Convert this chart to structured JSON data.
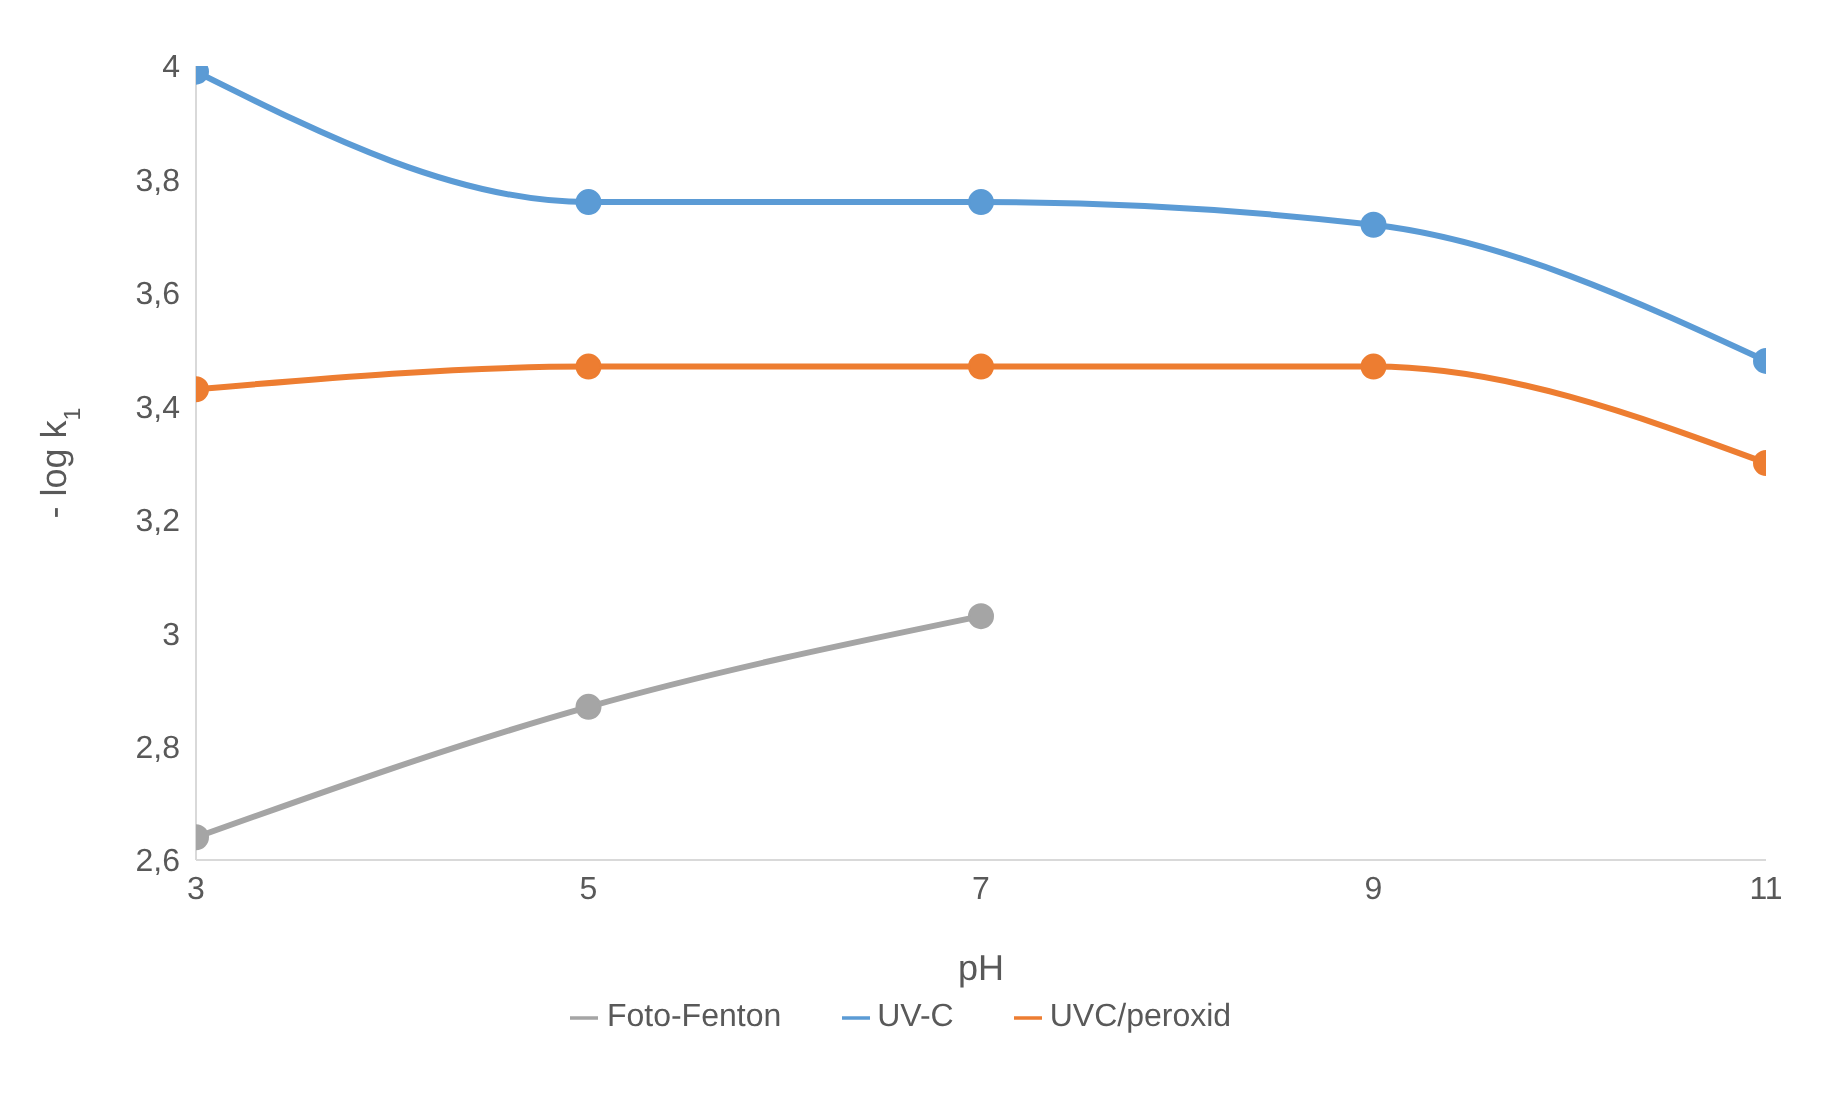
{
  "chart_data": {
    "type": "line",
    "xlabel": "pH",
    "ylabel": "- log k$_{1}$",
    "x": [
      3,
      5,
      7,
      9,
      11
    ],
    "series": [
      {
        "name": "UV-C",
        "color": "#5b9bd5",
        "values": [
          3.99,
          3.76,
          3.76,
          3.72,
          3.48
        ]
      },
      {
        "name": "UVC/peroxid",
        "color": "#ed7d31",
        "values": [
          3.43,
          3.47,
          3.47,
          3.47,
          3.3
        ]
      },
      {
        "name": "Foto-Fenton",
        "color": "#a5a5a5",
        "values": [
          2.64,
          2.87,
          3.03,
          null,
          null
        ]
      }
    ],
    "xlim": [
      3,
      11
    ],
    "xticks": [
      3,
      5,
      7,
      9,
      11
    ],
    "ylim": [
      2.6,
      4
    ],
    "yticks": [
      {
        "value": 2.6,
        "label": "2,6"
      },
      {
        "value": 2.8,
        "label": "2,8"
      },
      {
        "value": 3,
        "label": "3"
      },
      {
        "value": 3.2,
        "label": "3,2"
      },
      {
        "value": 3.4,
        "label": "3,4"
      },
      {
        "value": 3.6,
        "label": "3,6"
      },
      {
        "value": 3.8,
        "label": "3,8"
      },
      {
        "value": 4,
        "label": "4"
      }
    ],
    "grid": false,
    "legend": "bottom",
    "marker": "circle"
  }
}
